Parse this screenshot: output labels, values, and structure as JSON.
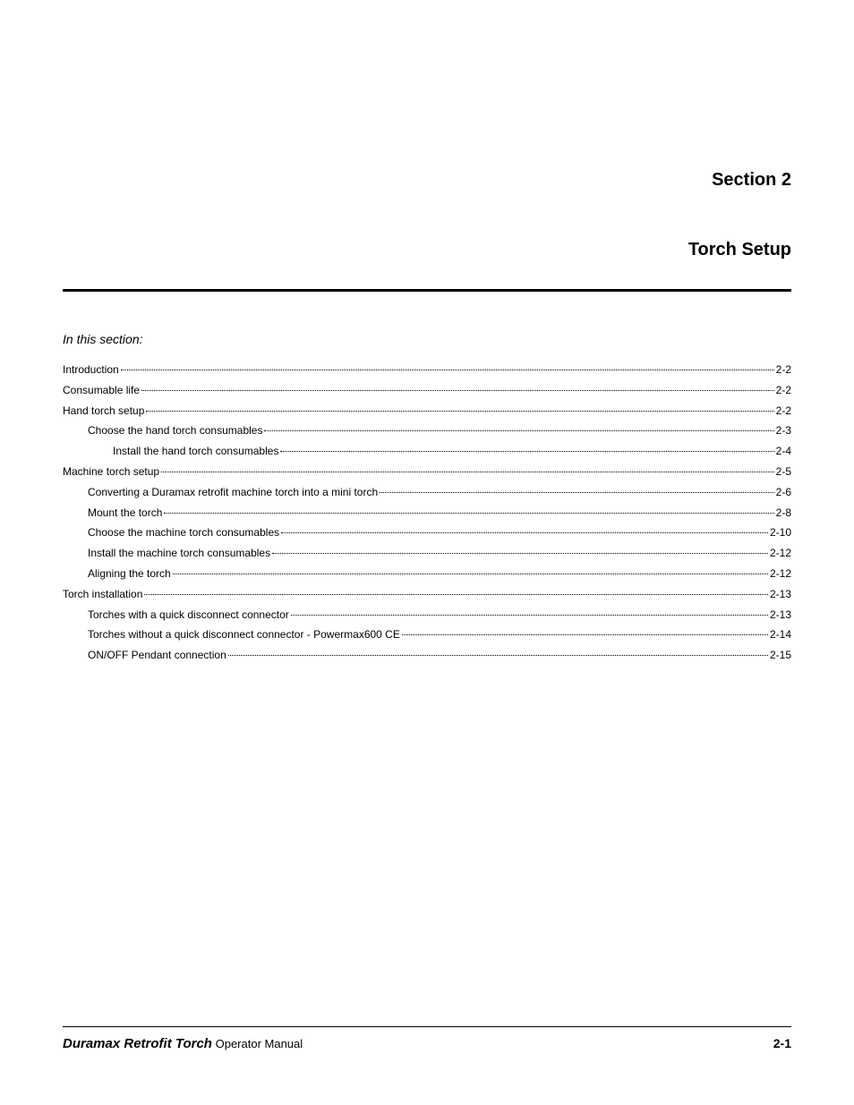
{
  "header": {
    "section_number": "Section 2",
    "title": "Torch Setup"
  },
  "in_this_section": "In this section:",
  "toc": [
    {
      "label": "Introduction",
      "page": "2-2",
      "indent": 0
    },
    {
      "label": "Consumable life",
      "page": "2-2",
      "indent": 0
    },
    {
      "label": "Hand torch setup",
      "page": "2-2",
      "indent": 0
    },
    {
      "label": "Choose the hand torch consumables",
      "page": "2-3",
      "indent": 1
    },
    {
      "label": "Install the hand torch consumables",
      "page": "2-4",
      "indent": 2
    },
    {
      "label": "Machine torch setup",
      "page": "2-5",
      "indent": 0
    },
    {
      "label": "Converting a Duramax retrofit machine torch into a mini torch",
      "page": "2-6",
      "indent": 1
    },
    {
      "label": "Mount the torch",
      "page": "2-8",
      "indent": 1
    },
    {
      "label": "Choose the machine torch consumables",
      "page": "2-10",
      "indent": 1
    },
    {
      "label": "Install the machine torch consumables",
      "page": "2-12",
      "indent": 1
    },
    {
      "label": "Aligning the torch",
      "page": "2-12",
      "indent": 1
    },
    {
      "label": "Torch installation",
      "page": "2-13",
      "indent": 0
    },
    {
      "label": "Torches with a quick disconnect connector",
      "page": "2-13",
      "indent": 1
    },
    {
      "label": "Torches without a quick disconnect connector - Powermax600 CE",
      "page": "2-14",
      "indent": 1
    },
    {
      "label": "ON/OFF Pendant connection",
      "page": "2-15",
      "indent": 1
    }
  ],
  "footer": {
    "product": "Duramax Retrofit Torch",
    "doc_type": "Operator Manual",
    "page_number": "2-1"
  },
  "styles": {
    "background_color": "#ffffff",
    "text_color": "#000000",
    "section_fontsize": 20,
    "toc_fontsize": 12,
    "footer_fontsize": 13
  }
}
